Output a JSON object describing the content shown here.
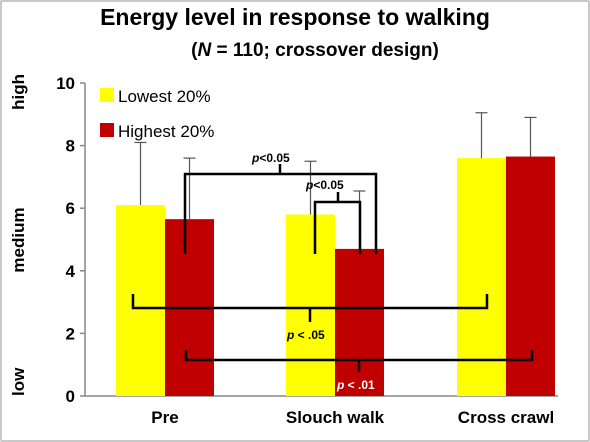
{
  "chart_data": {
    "type": "bar",
    "title": "Energy  level  in response to walking",
    "subtitle_n": "N",
    "subtitle_prefix": "(",
    "subtitle_rest": " = 110; crossover design)",
    "categories": [
      "Pre",
      "Slouch walk",
      "Cross crawl"
    ],
    "series": [
      {
        "name": "Lowest 20%",
        "color": "#ffff00",
        "values": [
          6.1,
          5.8,
          7.6
        ],
        "error": [
          2.0,
          1.7,
          1.45
        ]
      },
      {
        "name": "Highest 20%",
        "color": "#c00000",
        "values": [
          5.65,
          4.7,
          7.65
        ],
        "error": [
          1.95,
          1.85,
          1.25
        ]
      }
    ],
    "ylim": [
      0,
      10
    ],
    "yticks": [
      "0",
      "2",
      "4",
      "6",
      "8",
      "10"
    ],
    "y_side_labels": [
      "low",
      "medium",
      "high"
    ],
    "legend_position": "top-left",
    "grid": false,
    "annotations": [
      {
        "p": "p",
        "rest": "<0.05"
      },
      {
        "p": "p",
        "rest": "<0.05"
      },
      {
        "p": "p",
        "rest": " < .05"
      },
      {
        "p": "p",
        "rest": " < .01"
      }
    ]
  }
}
